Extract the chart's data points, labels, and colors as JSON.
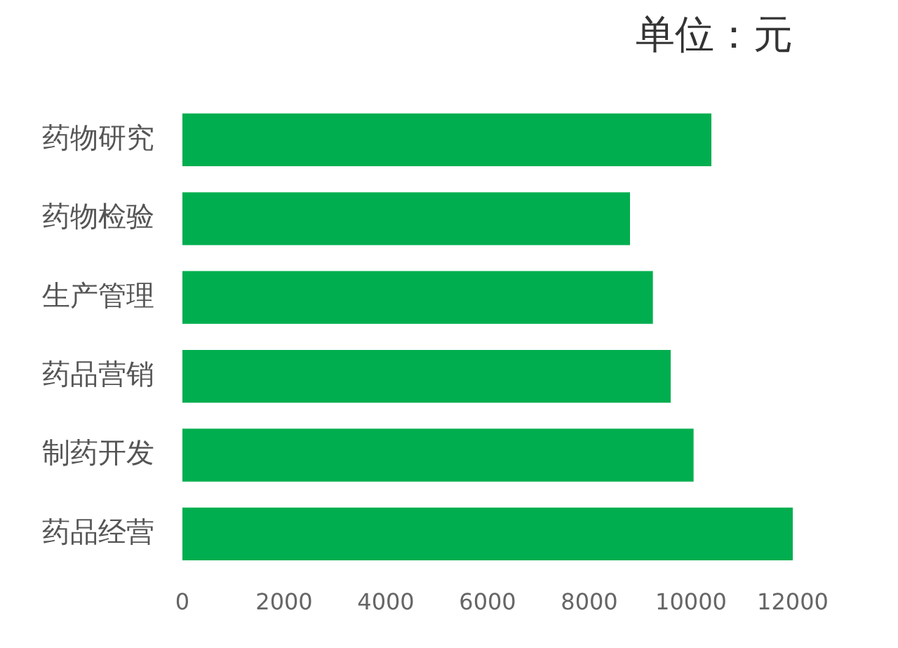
{
  "chart_data": {
    "type": "bar",
    "orientation": "horizontal",
    "title": "单位：元",
    "categories": [
      "药物研究",
      "药物检验",
      "生产管理",
      "药品营销",
      "制药开发",
      "药品经营"
    ],
    "values": [
      10400,
      8800,
      9250,
      9600,
      10050,
      12000
    ],
    "color": "#00ae4f",
    "xlim": [
      0,
      12000
    ],
    "xticks": [
      0,
      2000,
      4000,
      6000,
      8000,
      10000,
      12000
    ],
    "grid": false,
    "legend": false
  }
}
